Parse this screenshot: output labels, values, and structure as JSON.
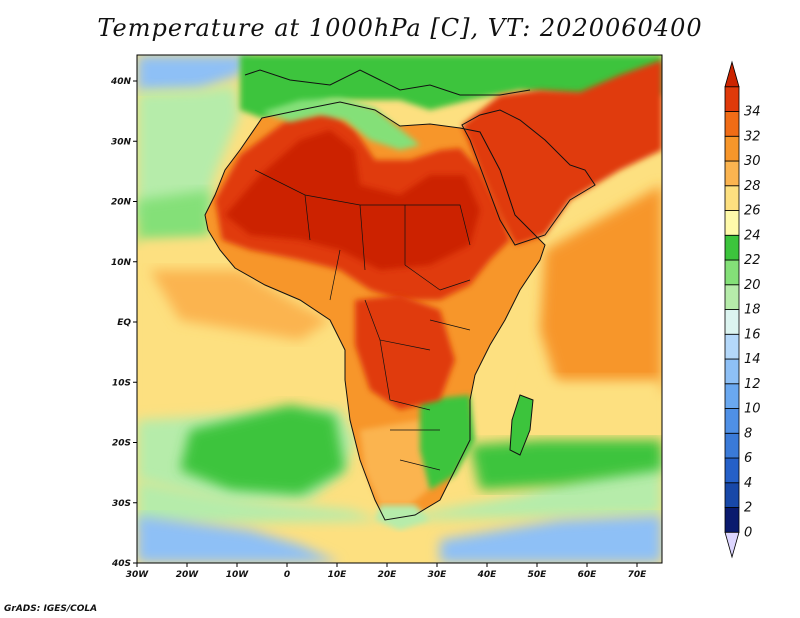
{
  "title": "Temperature at 1000hPa [C], VT: 2020060400",
  "credit": "GrADS: IGES/COLA",
  "axes": {
    "lat_labels": [
      "40N",
      "30N",
      "20N",
      "10N",
      "EQ",
      "10S",
      "20S",
      "30S",
      "40S"
    ],
    "lon_labels": [
      "30W",
      "20W",
      "10W",
      "0",
      "10E",
      "20E",
      "30E",
      "40E",
      "50E",
      "60E",
      "70E"
    ]
  },
  "colorbar": {
    "levels": [
      "0",
      "2",
      "4",
      "6",
      "8",
      "10",
      "12",
      "14",
      "16",
      "18",
      "20",
      "22",
      "24",
      "26",
      "28",
      "30",
      "32",
      "34"
    ],
    "colors": [
      "#ddd6ff",
      "#0a1a6e",
      "#1848a8",
      "#2560c8",
      "#3a7ad8",
      "#4f90e6",
      "#6aa8f0",
      "#8ec0f6",
      "#b4d8fa",
      "#dcf4f0",
      "#b6ecaa",
      "#84e078",
      "#3cc43c",
      "#fffaaa",
      "#fde080",
      "#fbb450",
      "#f7962a",
      "#f06c16",
      "#e03a0a",
      "#cc2400"
    ]
  },
  "palette": {
    "ocean_cold": "#8ec0f6",
    "ocean_cool": "#b6ecaa",
    "ocean_mid": "#84e078",
    "ocean_warm": "#fde080",
    "ocean_hot": "#fbb450",
    "land_green": "#3cc43c",
    "land_warm": "#f7962a",
    "land_hot": "#e03a0a",
    "land_hottest": "#cc2400"
  }
}
